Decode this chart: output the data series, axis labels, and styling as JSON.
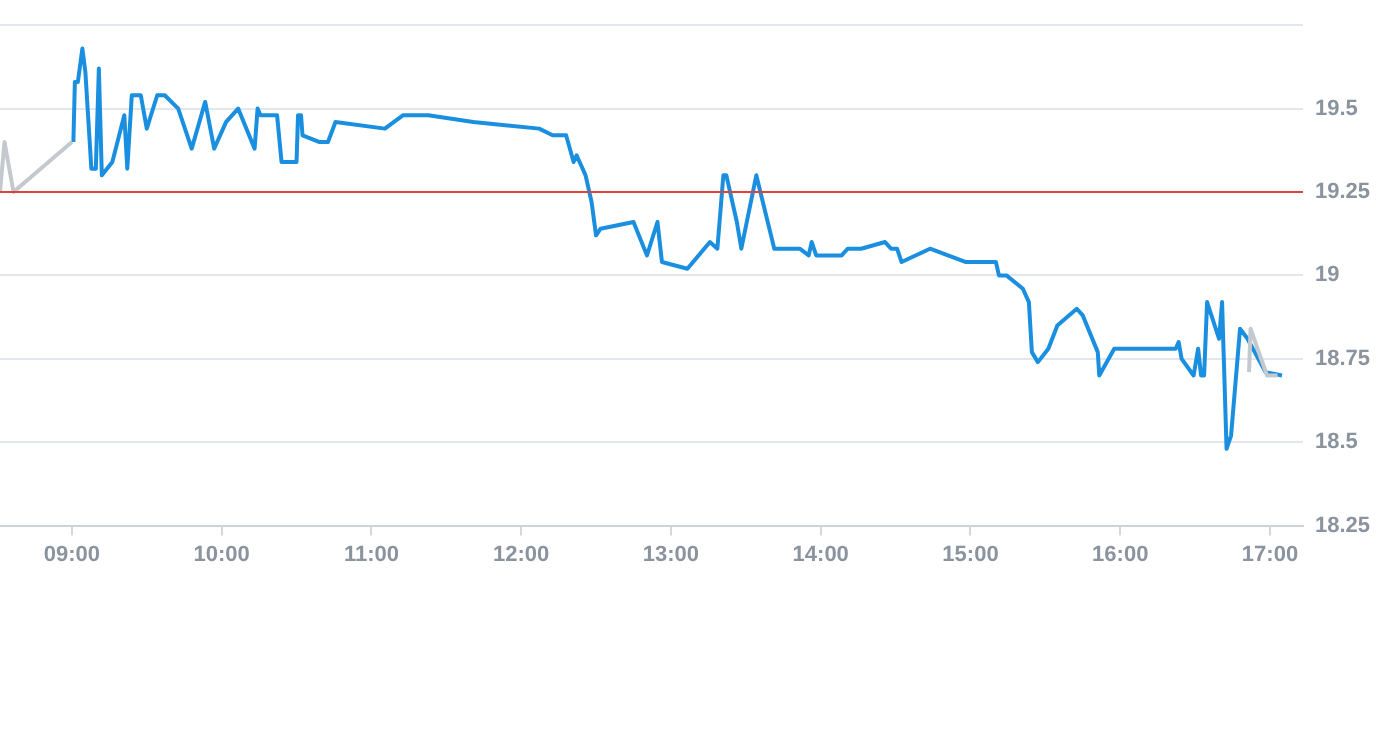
{
  "chart_data": {
    "type": "line",
    "xlim": [
      8.52,
      17.22
    ],
    "ylim": [
      18.25,
      19.75
    ],
    "xticks": [
      {
        "value": 9,
        "label": "09:00"
      },
      {
        "value": 10,
        "label": "10:00"
      },
      {
        "value": 11,
        "label": "11:00"
      },
      {
        "value": 12,
        "label": "12:00"
      },
      {
        "value": 13,
        "label": "13:00"
      },
      {
        "value": 14,
        "label": "14:00"
      },
      {
        "value": 15,
        "label": "15:00"
      },
      {
        "value": 16,
        "label": "16:00"
      },
      {
        "value": 17,
        "label": "17:00"
      }
    ],
    "yticks": [
      18.25,
      18.5,
      18.75,
      19,
      19.25,
      19.5,
      {
        "value": 19.75,
        "label": null
      }
    ],
    "grid": "y",
    "legend": false,
    "marker": "none",
    "line_style": "solid",
    "ref_lines": [
      {
        "axis": "y",
        "value": 19.25,
        "color": "#e0413a"
      }
    ],
    "series": [
      {
        "color": "#c4c9d0",
        "x": [
          8.52,
          8.55,
          8.61,
          9.0
        ],
        "values": [
          19.25,
          19.4,
          19.25,
          19.4
        ]
      },
      {
        "color": "#c4c9d0",
        "x": [
          16.86,
          16.87,
          16.98,
          17.05
        ],
        "values": [
          18.71,
          18.84,
          18.7,
          18.7
        ]
      },
      {
        "color": "#1a8fe0",
        "x": [
          9.01,
          9.02,
          9.04,
          9.07,
          9.09,
          9.13,
          9.16,
          9.18,
          9.2,
          9.27,
          9.35,
          9.37,
          9.4,
          9.46,
          9.5,
          9.57,
          9.62,
          9.71,
          9.8,
          9.89,
          9.95,
          10.03,
          10.11,
          10.22,
          10.24,
          10.26,
          10.37,
          10.4,
          10.5,
          10.51,
          10.53,
          10.54,
          10.65,
          10.71,
          10.76,
          11.09,
          11.21,
          11.38,
          11.68,
          12.12,
          12.21,
          12.3,
          12.35,
          12.37,
          12.43,
          12.47,
          12.5,
          12.53,
          12.75,
          12.84,
          12.91,
          12.94,
          13.11,
          13.26,
          13.31,
          13.35,
          13.37,
          13.44,
          13.47,
          13.57,
          13.69,
          13.86,
          13.92,
          13.94,
          13.97,
          14.14,
          14.18,
          14.27,
          14.43,
          14.47,
          14.51,
          14.54,
          14.73,
          14.97,
          15.17,
          15.19,
          15.24,
          15.35,
          15.39,
          15.41,
          15.45,
          15.52,
          15.58,
          15.71,
          15.75,
          15.85,
          15.86,
          15.96,
          16.37,
          16.39,
          16.41,
          16.49,
          16.52,
          16.54,
          16.56,
          16.58,
          16.66,
          16.68,
          16.71,
          16.74,
          16.8,
          16.85,
          16.97,
          17.08
        ],
        "values": [
          19.4,
          19.58,
          19.58,
          19.68,
          19.61,
          19.32,
          19.32,
          19.62,
          19.3,
          19.34,
          19.48,
          19.32,
          19.54,
          19.54,
          19.44,
          19.54,
          19.54,
          19.5,
          19.38,
          19.52,
          19.38,
          19.46,
          19.5,
          19.38,
          19.5,
          19.48,
          19.48,
          19.34,
          19.34,
          19.48,
          19.48,
          19.42,
          19.4,
          19.4,
          19.46,
          19.44,
          19.48,
          19.48,
          19.46,
          19.44,
          19.42,
          19.42,
          19.34,
          19.36,
          19.3,
          19.22,
          19.12,
          19.14,
          19.16,
          19.06,
          19.16,
          19.04,
          19.02,
          19.1,
          19.08,
          19.3,
          19.3,
          19.16,
          19.08,
          19.3,
          19.08,
          19.08,
          19.06,
          19.1,
          19.06,
          19.06,
          19.08,
          19.08,
          19.1,
          19.08,
          19.08,
          19.04,
          19.08,
          19.04,
          19.04,
          19.0,
          19.0,
          18.96,
          18.92,
          18.77,
          18.74,
          18.78,
          18.85,
          18.9,
          18.88,
          18.77,
          18.7,
          18.78,
          18.78,
          18.8,
          18.75,
          18.7,
          18.78,
          18.7,
          18.7,
          18.92,
          18.81,
          18.92,
          18.48,
          18.52,
          18.84,
          18.81,
          18.71,
          18.7
        ]
      }
    ]
  }
}
